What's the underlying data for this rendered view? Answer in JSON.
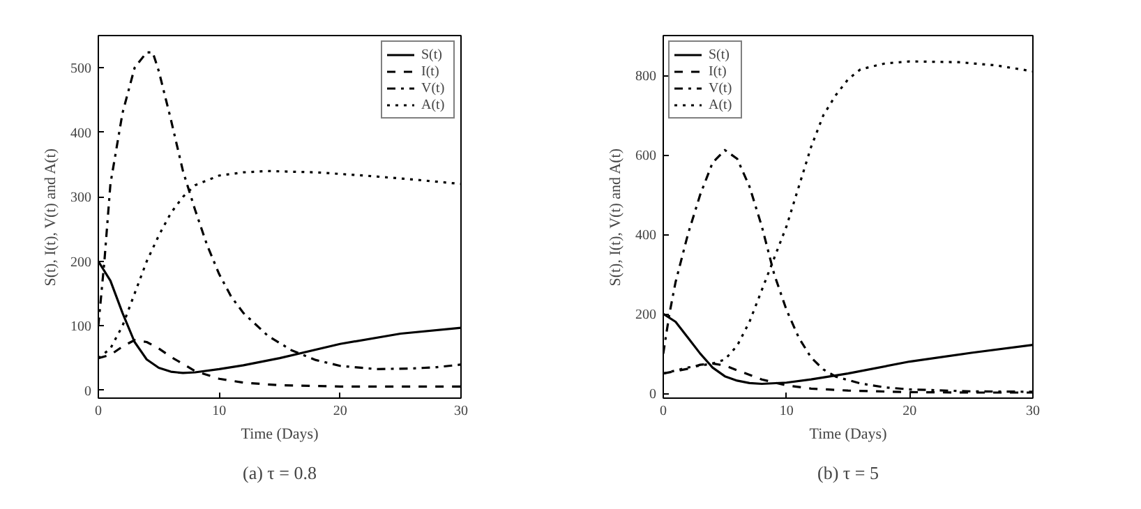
{
  "chart_data": [
    {
      "type": "line",
      "title": "(a) τ = 0.8",
      "xlabel": "Time (Days)",
      "ylabel": "S(t), I(t), V(t) and A(t)",
      "xlim": [
        0,
        30
      ],
      "ylim": [
        -12,
        550
      ],
      "xticks": [
        0,
        10,
        20,
        30
      ],
      "yticks": [
        0,
        100,
        200,
        300,
        400,
        500
      ],
      "legend": "top right",
      "grid": false,
      "series": [
        {
          "name": "S(t)",
          "color": "#000000",
          "line_style": "solid",
          "x": [
            0,
            1,
            2,
            3,
            4,
            5,
            6,
            7,
            8,
            10,
            12,
            15,
            20,
            25,
            30
          ],
          "values": [
            200,
            170,
            120,
            75,
            48,
            35,
            29,
            27,
            28,
            33,
            39,
            50,
            72,
            88,
            97
          ]
        },
        {
          "name": "I(t)",
          "color": "#000000",
          "line_style": "dashed",
          "x": [
            0,
            1,
            2,
            3,
            4,
            5,
            6,
            8,
            10,
            12,
            15,
            20,
            25,
            30
          ],
          "values": [
            50,
            55,
            68,
            78,
            75,
            65,
            52,
            30,
            18,
            12,
            8,
            6,
            6,
            6
          ]
        },
        {
          "name": "V(t)",
          "color": "#000000",
          "line_style": "dashdot",
          "x": [
            0,
            0.5,
            1,
            2,
            3,
            4,
            4.5,
            5,
            6,
            7,
            8,
            9,
            10,
            11,
            12,
            14,
            16,
            18,
            20,
            23,
            26,
            28,
            30
          ],
          "values": [
            100,
            200,
            320,
            430,
            500,
            524,
            524,
            495,
            420,
            340,
            280,
            225,
            180,
            145,
            120,
            85,
            62,
            47,
            38,
            33,
            34,
            36,
            40
          ]
        },
        {
          "name": "A(t)",
          "color": "#000000",
          "line_style": "dotted",
          "x": [
            0,
            1,
            2,
            3,
            4,
            5,
            6,
            7,
            8,
            10,
            12,
            14,
            18,
            22,
            26,
            30
          ],
          "values": [
            50,
            65,
            100,
            150,
            200,
            240,
            275,
            300,
            318,
            333,
            338,
            340,
            338,
            333,
            327,
            320
          ]
        }
      ]
    },
    {
      "type": "line",
      "title": "(b) τ = 5",
      "xlabel": "Time (Days)",
      "ylabel": "S(t), I(t), V(t) and A(t)",
      "xlim": [
        0,
        30
      ],
      "ylim": [
        -12,
        900
      ],
      "xticks": [
        0,
        10,
        20,
        30
      ],
      "yticks": [
        0,
        200,
        400,
        600,
        800
      ],
      "legend": "top left",
      "grid": false,
      "series": [
        {
          "name": "S(t)",
          "color": "#000000",
          "line_style": "solid",
          "x": [
            0,
            1,
            2,
            3,
            4,
            5,
            6,
            7,
            8,
            10,
            12,
            15,
            20,
            25,
            30
          ],
          "values": [
            200,
            180,
            140,
            100,
            65,
            43,
            32,
            26,
            24,
            27,
            35,
            50,
            80,
            102,
            122
          ]
        },
        {
          "name": "I(t)",
          "color": "#000000",
          "line_style": "dashed",
          "x": [
            0,
            2,
            3,
            4,
            5,
            6,
            8,
            10,
            12,
            15,
            20,
            25,
            30
          ],
          "values": [
            50,
            62,
            72,
            75,
            70,
            58,
            35,
            20,
            12,
            7,
            3,
            2,
            2
          ]
        },
        {
          "name": "V(t)",
          "color": "#000000",
          "line_style": "dashdot",
          "x": [
            0,
            0.5,
            1,
            2,
            3,
            4,
            5,
            6,
            7,
            8,
            9,
            10,
            11,
            12,
            13,
            14,
            16,
            18,
            20,
            25,
            30
          ],
          "values": [
            100,
            200,
            280,
            400,
            500,
            580,
            612,
            590,
            520,
            420,
            300,
            210,
            140,
            90,
            60,
            42,
            25,
            15,
            10,
            5,
            4
          ]
        },
        {
          "name": "A(t)",
          "color": "#000000",
          "line_style": "dotted",
          "x": [
            0,
            2,
            4,
            5,
            6,
            7,
            8,
            9,
            10,
            11,
            12,
            13,
            14,
            15,
            16,
            18,
            20,
            24,
            27,
            30
          ],
          "values": [
            50,
            65,
            75,
            85,
            120,
            180,
            260,
            340,
            420,
            520,
            620,
            700,
            750,
            790,
            815,
            830,
            835,
            833,
            825,
            810
          ]
        }
      ]
    }
  ]
}
